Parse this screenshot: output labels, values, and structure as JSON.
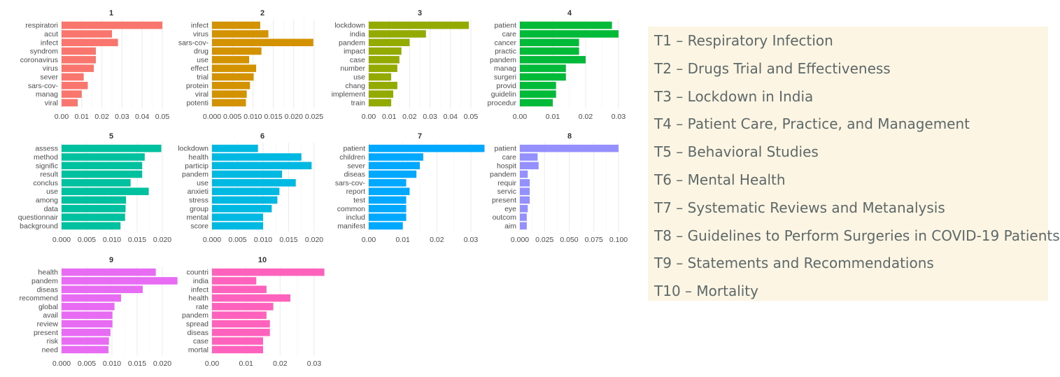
{
  "chart_data": [
    {
      "type": "bar",
      "orientation": "horizontal",
      "title": "1",
      "color": "#f8766d",
      "categories": [
        "respiratori",
        "acut",
        "infect",
        "syndrom",
        "coronavirus",
        "virus",
        "sever",
        "sars-cov-",
        "manag",
        "viral"
      ],
      "values": [
        0.05,
        0.025,
        0.028,
        0.017,
        0.017,
        0.016,
        0.011,
        0.013,
        0.01,
        0.008
      ],
      "ticks": [
        0.0,
        0.01,
        0.02,
        0.03,
        0.04,
        0.05
      ],
      "tick_labels": [
        "0.00",
        "0.01",
        "0.02",
        "0.03",
        "0.04",
        "0.05"
      ],
      "xlim": [
        0,
        0.05
      ]
    },
    {
      "type": "bar",
      "orientation": "horizontal",
      "title": "2",
      "color": "#d39200",
      "categories": [
        "infect",
        "virus",
        "sars-cov-",
        "drug",
        "use",
        "effect",
        "trial",
        "protein",
        "viral",
        "potenti"
      ],
      "values": [
        0.0118,
        0.0138,
        0.0248,
        0.0121,
        0.0091,
        0.0108,
        0.0102,
        0.0093,
        0.0085,
        0.0083
      ],
      "ticks": [
        0,
        0.005,
        0.01,
        0.015,
        0.02,
        0.025
      ],
      "tick_labels": [
        "0.000",
        "0.005",
        "0.010",
        "0.015",
        "0.020",
        "0.025"
      ],
      "xlim": [
        0,
        0.025
      ]
    },
    {
      "type": "bar",
      "orientation": "horizontal",
      "title": "3",
      "color": "#93aa00",
      "categories": [
        "lockdown",
        "india",
        "pandem",
        "impact",
        "case",
        "number",
        "use",
        "chang",
        "implement",
        "train"
      ],
      "values": [
        0.049,
        0.028,
        0.02,
        0.016,
        0.015,
        0.014,
        0.011,
        0.014,
        0.012,
        0.011
      ],
      "ticks": [
        0,
        0.01,
        0.02,
        0.03,
        0.04,
        0.05
      ],
      "tick_labels": [
        "0.00",
        "0.01",
        "0.02",
        "0.03",
        "0.04",
        "0.05"
      ],
      "xlim": [
        0,
        0.05
      ]
    },
    {
      "type": "bar",
      "orientation": "horizontal",
      "title": "4",
      "color": "#00ba38",
      "categories": [
        "patient",
        "care",
        "cancer",
        "practic",
        "pandem",
        "manag",
        "surgeri",
        "provid",
        "guidelin",
        "procedur"
      ],
      "values": [
        0.028,
        0.03,
        0.018,
        0.018,
        0.02,
        0.014,
        0.014,
        0.011,
        0.011,
        0.01
      ],
      "ticks": [
        0,
        0.01,
        0.02,
        0.03
      ],
      "tick_labels": [
        "0.00",
        "0.01",
        "0.02",
        "0.03"
      ],
      "xlim": [
        0,
        0.031
      ]
    },
    {
      "type": "bar",
      "orientation": "horizontal",
      "title": "5",
      "color": "#00c19f",
      "categories": [
        "assess",
        "method",
        "signific",
        "result",
        "conclus",
        "use",
        "among",
        "data",
        "questionnair",
        "background"
      ],
      "values": [
        0.0198,
        0.0165,
        0.016,
        0.016,
        0.0137,
        0.0173,
        0.0128,
        0.0127,
        0.0126,
        0.0117
      ],
      "ticks": [
        0,
        0.005,
        0.01,
        0.015,
        0.02
      ],
      "tick_labels": [
        "0.000",
        "0.005",
        "0.010",
        "0.015",
        "0.020"
      ],
      "xlim": [
        0,
        0.02
      ]
    },
    {
      "type": "bar",
      "orientation": "horizontal",
      "title": "6",
      "color": "#00b9e3",
      "categories": [
        "lockdown",
        "health",
        "particip",
        "pandem",
        "use",
        "anxieti",
        "stress",
        "group",
        "mental",
        "score"
      ],
      "values": [
        0.009,
        0.0175,
        0.0195,
        0.0137,
        0.0164,
        0.0132,
        0.0128,
        0.0117,
        0.01,
        0.01
      ],
      "ticks": [
        0,
        0.005,
        0.01,
        0.015,
        0.02
      ],
      "tick_labels": [
        "0.000",
        "0.005",
        "0.010",
        "0.015",
        "0.020"
      ],
      "xlim": [
        0,
        0.02
      ]
    },
    {
      "type": "bar",
      "orientation": "horizontal",
      "title": "7",
      "color": "#00a9ff",
      "categories": [
        "patient",
        "children",
        "sever",
        "diseas",
        "sars-cov-",
        "report",
        "test",
        "common",
        "includ",
        "manifest"
      ],
      "values": [
        0.034,
        0.016,
        0.015,
        0.014,
        0.011,
        0.012,
        0.011,
        0.011,
        0.011,
        0.01
      ],
      "ticks": [
        0,
        0.01,
        0.02,
        0.03
      ],
      "tick_labels": [
        "0.00",
        "0.01",
        "0.02",
        "0.03"
      ],
      "xlim": [
        0,
        0.034
      ]
    },
    {
      "type": "bar",
      "orientation": "horizontal",
      "title": "8",
      "color": "#9590ff",
      "categories": [
        "patient",
        "care",
        "hospit",
        "pandem",
        "requir",
        "servic",
        "present",
        "eye",
        "outcom",
        "aim"
      ],
      "values": [
        0.1,
        0.018,
        0.019,
        0.008,
        0.01,
        0.01,
        0.01,
        0.008,
        0.007,
        0.007
      ],
      "ticks": [
        0,
        0.025,
        0.05,
        0.075,
        0.1
      ],
      "tick_labels": [
        "0.000",
        "0.025",
        "0.050",
        "0.075",
        "0.100"
      ],
      "xlim": [
        0,
        0.1
      ]
    },
    {
      "type": "bar",
      "orientation": "horizontal",
      "title": "9",
      "color": "#e76bf3",
      "categories": [
        "health",
        "pandem",
        "diseas",
        "recommend",
        "global",
        "avail",
        "review",
        "present",
        "risk",
        "need"
      ],
      "values": [
        0.0187,
        0.023,
        0.0161,
        0.0118,
        0.0105,
        0.0101,
        0.0101,
        0.0097,
        0.0094,
        0.0093
      ],
      "ticks": [
        0,
        0.005,
        0.01,
        0.015,
        0.02
      ],
      "tick_labels": [
        "0.000",
        "0.005",
        "0.010",
        "0.015",
        "0.020"
      ],
      "xlim": [
        0,
        0.024
      ]
    },
    {
      "type": "bar",
      "orientation": "horizontal",
      "title": "10",
      "color": "#ff62bc",
      "categories": [
        "countri",
        "india",
        "infect",
        "health",
        "rate",
        "pandem",
        "spread",
        "diseas",
        "case",
        "mortal"
      ],
      "values": [
        0.033,
        0.013,
        0.016,
        0.023,
        0.018,
        0.016,
        0.017,
        0.017,
        0.015,
        0.015
      ],
      "ticks": [
        0,
        0.01,
        0.02,
        0.03
      ],
      "tick_labels": [
        "0.00",
        "0.01",
        "0.02",
        "0.03"
      ],
      "xlim": [
        0,
        0.033
      ]
    }
  ],
  "legend": {
    "items": [
      "T1 – Respiratory Infection",
      "T2 – Drugs Trial and Effectiveness",
      "T3 – Lockdown in India",
      "T4 – Patient Care, Practice, and Management",
      "T5 – Behavioral Studies",
      "T6 – Mental Health",
      "T7 – Systematic Reviews and Metanalysis",
      "T8 – Guidelines to Perform Surgeries in COVID-19 Patients",
      "T9 – Statements and Recommendations",
      "T10 – Mortality"
    ]
  }
}
